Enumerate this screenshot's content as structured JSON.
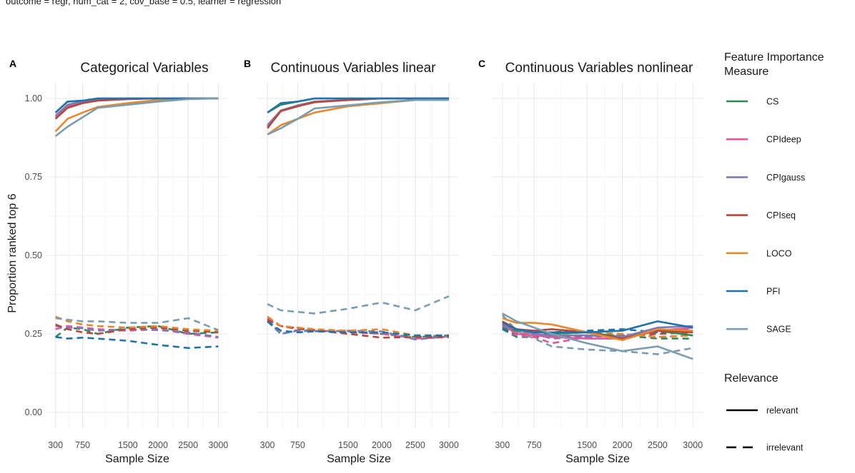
{
  "subtitle": "outcome = regr, num_cat = 2, cov_base = 0.5, learner = regression",
  "colors": {
    "CS": "#2e8b57",
    "CPIdeep": "#e0579a",
    "CPIgauss": "#8079b8",
    "CPIseq": "#b8463b",
    "LOCO": "#e6892d",
    "PFI": "#1f73ad",
    "SAGE": "#7a9db0"
  },
  "chart_data": {
    "type": "line",
    "ylabel": "Proportion ranked top 6",
    "xlabel": "Sample Size",
    "ylim": [
      -0.05,
      1.05
    ],
    "xlim": [
      150,
      3150
    ],
    "y_ticks": [
      0.0,
      0.25,
      0.5,
      0.75,
      1.0
    ],
    "y_tick_labels": [
      "0.00",
      "0.25",
      "0.50",
      "0.75",
      "1.00"
    ],
    "x_ticks": [
      300,
      750,
      1500,
      2000,
      2500,
      3000
    ],
    "x_tick_labels": [
      "300",
      "750",
      "1500",
      "2000",
      "2500",
      "3000"
    ],
    "x": [
      300,
      500,
      750,
      1000,
      1500,
      2000,
      2500,
      3000
    ],
    "legend": {
      "title1": "Feature Importance",
      "title2": "Measure",
      "entries": [
        "CS",
        "CPIdeep",
        "CPIgauss",
        "CPIseq",
        "LOCO",
        "PFI",
        "SAGE"
      ],
      "relevance_title": "Relevance",
      "relevance_entries": [
        "relevant",
        "irrelevant"
      ]
    },
    "panels": [
      {
        "tag": "A",
        "title": "Categorical Variables",
        "series": [
          {
            "name": "CS",
            "relevance": "relevant",
            "values": [
              0.955,
              0.99,
              0.993,
              1.0,
              1.0,
              1.0,
              1.0,
              1.0
            ]
          },
          {
            "name": "CPIdeep",
            "relevance": "relevant",
            "values": [
              0.94,
              0.975,
              0.99,
              0.995,
              1.0,
              1.0,
              1.0,
              1.0
            ]
          },
          {
            "name": "CPIgauss",
            "relevance": "relevant",
            "values": [
              0.945,
              0.98,
              0.99,
              0.995,
              1.0,
              1.0,
              1.0,
              1.0
            ]
          },
          {
            "name": "CPIseq",
            "relevance": "relevant",
            "values": [
              0.935,
              0.97,
              0.985,
              0.993,
              0.998,
              1.0,
              1.0,
              1.0
            ]
          },
          {
            "name": "LOCO",
            "relevance": "relevant",
            "values": [
              0.895,
              0.935,
              0.955,
              0.973,
              0.985,
              0.995,
              1.0,
              1.0
            ]
          },
          {
            "name": "PFI",
            "relevance": "relevant",
            "values": [
              0.955,
              0.99,
              0.993,
              1.0,
              1.0,
              1.0,
              1.0,
              1.0
            ]
          },
          {
            "name": "SAGE",
            "relevance": "relevant",
            "values": [
              0.88,
              0.91,
              0.94,
              0.97,
              0.98,
              0.99,
              0.998,
              1.0
            ]
          },
          {
            "name": "CS",
            "relevance": "irrelevant",
            "values": [
              0.24,
              0.27,
              0.265,
              0.25,
              0.27,
              0.275,
              0.25,
              0.255
            ]
          },
          {
            "name": "CPIdeep",
            "relevance": "irrelevant",
            "values": [
              0.265,
              0.275,
              0.27,
              0.265,
              0.26,
              0.265,
              0.25,
              0.238
            ]
          },
          {
            "name": "CPIgauss",
            "relevance": "irrelevant",
            "values": [
              0.275,
              0.27,
              0.268,
              0.26,
              0.265,
              0.262,
              0.255,
              0.24
            ]
          },
          {
            "name": "CPIseq",
            "relevance": "irrelevant",
            "values": [
              0.28,
              0.265,
              0.255,
              0.25,
              0.265,
              0.27,
              0.26,
              0.255
            ]
          },
          {
            "name": "LOCO",
            "relevance": "irrelevant",
            "values": [
              0.305,
              0.29,
              0.28,
              0.275,
              0.27,
              0.275,
              0.265,
              0.26
            ]
          },
          {
            "name": "PFI",
            "relevance": "irrelevant",
            "values": [
              0.24,
              0.235,
              0.238,
              0.235,
              0.228,
              0.215,
              0.205,
              0.21
            ]
          },
          {
            "name": "SAGE",
            "relevance": "irrelevant",
            "values": [
              0.3,
              0.295,
              0.29,
              0.29,
              0.285,
              0.285,
              0.3,
              0.262
            ]
          }
        ]
      },
      {
        "tag": "B",
        "title": "Continuous Variables linear",
        "series": [
          {
            "name": "CS",
            "relevance": "relevant",
            "values": [
              0.955,
              0.98,
              0.99,
              1.0,
              1.0,
              1.0,
              1.0,
              1.0
            ]
          },
          {
            "name": "CPIdeep",
            "relevance": "relevant",
            "values": [
              0.91,
              0.96,
              0.975,
              0.99,
              0.995,
              1.0,
              1.0,
              1.0
            ]
          },
          {
            "name": "CPIgauss",
            "relevance": "relevant",
            "values": [
              0.915,
              0.962,
              0.978,
              0.99,
              0.995,
              1.0,
              1.0,
              1.0
            ]
          },
          {
            "name": "CPIseq",
            "relevance": "relevant",
            "values": [
              0.905,
              0.96,
              0.975,
              0.988,
              0.995,
              1.0,
              1.0,
              1.0
            ]
          },
          {
            "name": "LOCO",
            "relevance": "relevant",
            "values": [
              0.885,
              0.915,
              0.935,
              0.955,
              0.975,
              0.985,
              0.995,
              0.998
            ]
          },
          {
            "name": "PFI",
            "relevance": "relevant",
            "values": [
              0.955,
              0.985,
              0.99,
              1.0,
              1.0,
              1.0,
              1.0,
              1.0
            ]
          },
          {
            "name": "SAGE",
            "relevance": "relevant",
            "values": [
              0.885,
              0.905,
              0.935,
              0.968,
              0.978,
              0.988,
              0.995,
              0.995
            ]
          },
          {
            "name": "CS",
            "relevance": "irrelevant",
            "values": [
              0.29,
              0.25,
              0.262,
              0.26,
              0.258,
              0.25,
              0.24,
              0.245
            ]
          },
          {
            "name": "CPIdeep",
            "relevance": "irrelevant",
            "values": [
              0.3,
              0.275,
              0.265,
              0.262,
              0.255,
              0.25,
              0.235,
              0.24
            ]
          },
          {
            "name": "CPIgauss",
            "relevance": "irrelevant",
            "values": [
              0.295,
              0.25,
              0.26,
              0.258,
              0.26,
              0.258,
              0.232,
              0.242
            ]
          },
          {
            "name": "CPIseq",
            "relevance": "irrelevant",
            "values": [
              0.295,
              0.275,
              0.268,
              0.262,
              0.25,
              0.238,
              0.24,
              0.24
            ]
          },
          {
            "name": "LOCO",
            "relevance": "irrelevant",
            "values": [
              0.305,
              0.275,
              0.27,
              0.265,
              0.26,
              0.265,
              0.245,
              0.245
            ]
          },
          {
            "name": "PFI",
            "relevance": "irrelevant",
            "values": [
              0.29,
              0.26,
              0.255,
              0.258,
              0.255,
              0.255,
              0.245,
              0.245
            ]
          },
          {
            "name": "SAGE",
            "relevance": "irrelevant",
            "values": [
              0.345,
              0.325,
              0.32,
              0.315,
              0.33,
              0.35,
              0.325,
              0.37
            ]
          }
        ]
      },
      {
        "tag": "C",
        "title": "Continuous Variables nonlinear",
        "series": [
          {
            "name": "CS",
            "relevance": "relevant",
            "values": [
              0.27,
              0.26,
              0.26,
              0.25,
              0.255,
              0.24,
              0.26,
              0.245
            ]
          },
          {
            "name": "CPIdeep",
            "relevance": "relevant",
            "values": [
              0.28,
              0.25,
              0.245,
              0.24,
              0.235,
              0.235,
              0.26,
              0.27
            ]
          },
          {
            "name": "CPIgauss",
            "relevance": "relevant",
            "values": [
              0.275,
              0.265,
              0.25,
              0.245,
              0.245,
              0.24,
              0.27,
              0.275
            ]
          },
          {
            "name": "CPIseq",
            "relevance": "relevant",
            "values": [
              0.29,
              0.265,
              0.26,
              0.265,
              0.255,
              0.235,
              0.26,
              0.255
            ]
          },
          {
            "name": "LOCO",
            "relevance": "relevant",
            "values": [
              0.3,
              0.285,
              0.285,
              0.28,
              0.255,
              0.23,
              0.265,
              0.26
            ]
          },
          {
            "name": "PFI",
            "relevance": "relevant",
            "values": [
              0.285,
              0.265,
              0.255,
              0.255,
              0.255,
              0.26,
              0.29,
              0.27
            ]
          },
          {
            "name": "SAGE",
            "relevance": "relevant",
            "values": [
              0.315,
              0.29,
              0.27,
              0.25,
              0.22,
              0.195,
              0.21,
              0.17
            ]
          },
          {
            "name": "CS",
            "relevance": "irrelevant",
            "values": [
              0.265,
              0.24,
              0.24,
              0.245,
              0.245,
              0.245,
              0.235,
              0.235
            ]
          },
          {
            "name": "CPIdeep",
            "relevance": "irrelevant",
            "values": [
              0.27,
              0.245,
              0.24,
              0.22,
              0.24,
              0.25,
              0.24,
              0.245
            ]
          },
          {
            "name": "CPIgauss",
            "relevance": "irrelevant",
            "values": [
              0.275,
              0.255,
              0.25,
              0.235,
              0.24,
              0.245,
              0.255,
              0.265
            ]
          },
          {
            "name": "CPIseq",
            "relevance": "irrelevant",
            "values": [
              0.28,
              0.25,
              0.245,
              0.24,
              0.245,
              0.24,
              0.25,
              0.255
            ]
          },
          {
            "name": "LOCO",
            "relevance": "irrelevant",
            "values": [
              0.285,
              0.255,
              0.245,
              0.25,
              0.255,
              0.25,
              0.24,
              0.245
            ]
          },
          {
            "name": "PFI",
            "relevance": "irrelevant",
            "values": [
              0.265,
              0.25,
              0.245,
              0.255,
              0.26,
              0.265,
              0.255,
              0.26
            ]
          },
          {
            "name": "SAGE",
            "relevance": "irrelevant",
            "values": [
              0.31,
              0.26,
              0.235,
              0.21,
              0.2,
              0.195,
              0.185,
              0.205
            ]
          }
        ]
      }
    ]
  }
}
